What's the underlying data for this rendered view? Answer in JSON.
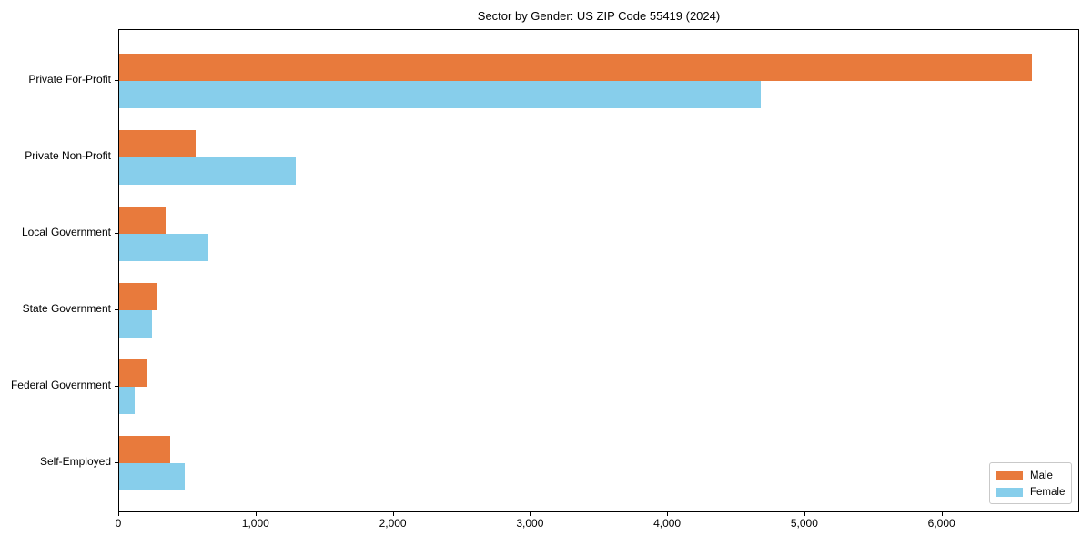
{
  "chart_data": {
    "type": "bar",
    "orientation": "horizontal",
    "title": "Sector by Gender: US ZIP Code 55419 (2024)",
    "categories": [
      "Private For-Profit",
      "Private Non-Profit",
      "Local Government",
      "State Government",
      "Federal Government",
      "Self-Employed"
    ],
    "series": [
      {
        "name": "Male",
        "color": "#e87a3c",
        "values": [
          6650,
          555,
          340,
          270,
          205,
          370
        ]
      },
      {
        "name": "Female",
        "color": "#87ceeb",
        "values": [
          4675,
          1285,
          650,
          240,
          115,
          480
        ]
      }
    ],
    "xlabel": "",
    "ylabel": "",
    "xlim": [
      0,
      6990
    ],
    "xticks": [
      0,
      1000,
      2000,
      3000,
      4000,
      5000,
      6000
    ],
    "xtick_labels": [
      "0",
      "1,000",
      "2,000",
      "3,000",
      "4,000",
      "5,000",
      "6,000"
    ],
    "grid": false,
    "legend": {
      "position": "lower right",
      "entries": [
        "Male",
        "Female"
      ]
    },
    "colors": {
      "male": "#e87a3c",
      "female": "#87ceeb",
      "axis": "#000000",
      "legend_border": "#c9c9c9"
    }
  }
}
